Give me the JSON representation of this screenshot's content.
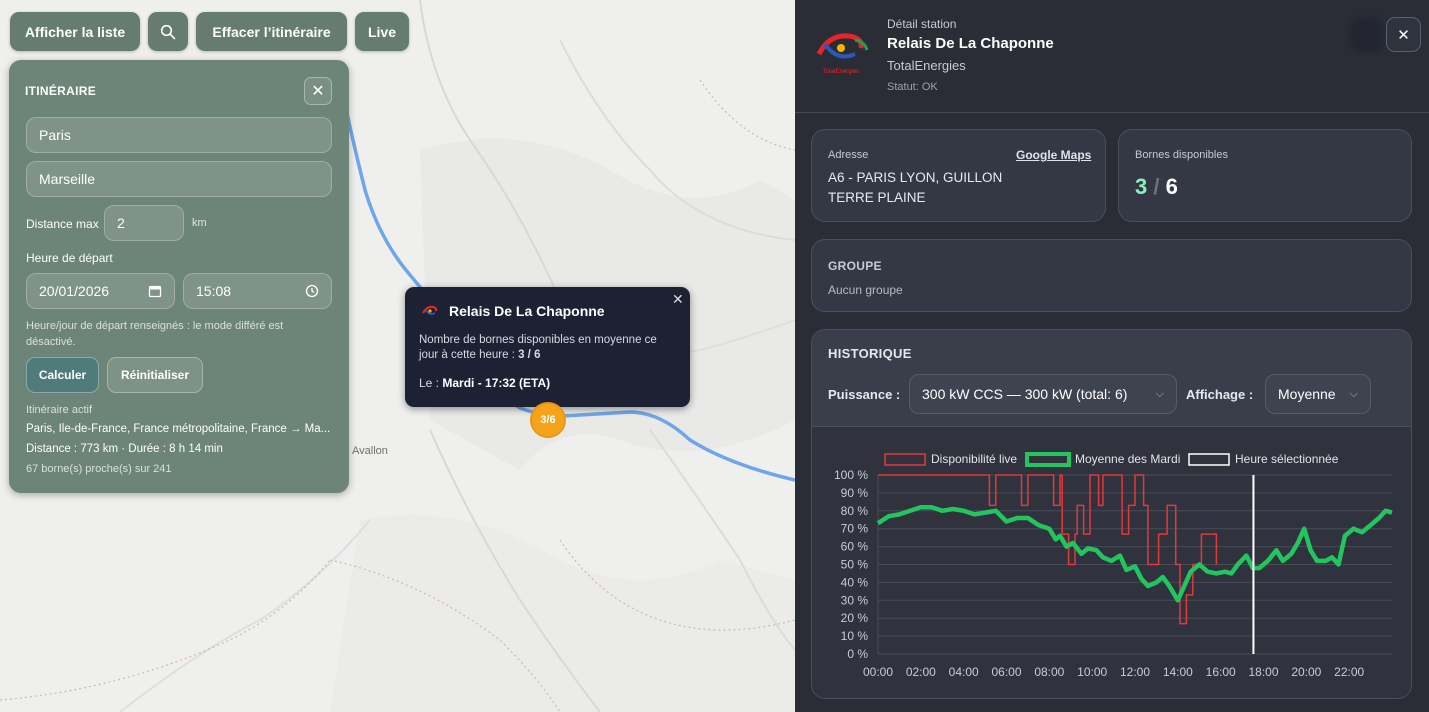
{
  "map": {
    "buttons": {
      "list": "Afficher la liste",
      "clear": "Effacer l’itinéraire",
      "live": "Live"
    },
    "town_label": "Avallon",
    "itinerary": {
      "title": "ITINÉRAIRE",
      "origin": "Paris",
      "destination": "Marseille",
      "distance_label": "Distance max",
      "distance_value": "2",
      "distance_unit": "km",
      "departure_label": "Heure de départ",
      "date": "20/01/2026",
      "time": "15:08",
      "hint": "Heure/jour de départ renseignés : le mode différé est désactivé.",
      "calc_button": "Calculer",
      "reset_button": "Réinitialiser",
      "active_label": "Itinéraire actif",
      "active_route": "Paris, Île-de-France, France métropolitaine, France → Ma...",
      "summary": "Distance : 773 km · Durée : 8 h 14 min",
      "nearby": "67 borne(s) proche(s) sur 241"
    },
    "popup": {
      "title": "Relais De La Chaponne",
      "text_prefix": "Nombre de bornes disponibles en moyenne ce jour à cette heure : ",
      "text_value": "3 / 6",
      "eta_prefix": "Le : ",
      "eta_value": "Mardi - 17:32 (ETA)"
    },
    "marker_label": "3/6"
  },
  "station": {
    "subtitle": "Détail station",
    "name": "Relais De La Chaponne",
    "brand": "TotalEnergies",
    "status": "Statut: OK",
    "logo_text": "TotalEnergies",
    "address_label": "Adresse",
    "address_line1": "A6 - PARIS LYON, GUILLON",
    "address_line2": "TERRE PLAINE",
    "maps_link": "Google Maps",
    "bornes_label": "Bornes disponibles",
    "bornes_available": "3",
    "bornes_sep": "/",
    "bornes_total": "6",
    "group_title": "GROUPE",
    "group_value": "Aucun groupe",
    "history_title": "HISTORIQUE",
    "power_label": "Puissance :",
    "power_value": "300 kW CCS — 300 kW (total: 6)",
    "display_label": "Affichage :",
    "display_value": "Moyenne"
  },
  "colors": {
    "live": "#e03a3a",
    "average": "#22c55e",
    "selected": "#ffffff",
    "marker": "#f4a31a"
  },
  "chart_data": {
    "type": "line",
    "legend": [
      "Disponibilité live",
      "Moyenne des Mardi",
      "Heure sélectionnée"
    ],
    "ylim": [
      0,
      100
    ],
    "y_ticks": [
      "0 %",
      "10 %",
      "20 %",
      "30 %",
      "40 %",
      "50 %",
      "60 %",
      "70 %",
      "80 %",
      "90 %",
      "100 %"
    ],
    "x_range": [
      0,
      24
    ],
    "x_ticks": [
      "00:00",
      "02:00",
      "04:00",
      "06:00",
      "08:00",
      "10:00",
      "12:00",
      "14:00",
      "16:00",
      "18:00",
      "20:00",
      "22:00"
    ],
    "selected_hour": 17.53,
    "series": [
      {
        "name": "Disponibilité live",
        "points": [
          [
            0,
            100
          ],
          [
            5.2,
            100
          ],
          [
            5.2,
            83
          ],
          [
            5.5,
            83
          ],
          [
            5.5,
            100
          ],
          [
            6.7,
            100
          ],
          [
            6.7,
            83
          ],
          [
            7.0,
            83
          ],
          [
            7.0,
            100
          ],
          [
            8.2,
            100
          ],
          [
            8.2,
            83
          ],
          [
            8.5,
            83
          ],
          [
            8.5,
            100
          ],
          [
            8.6,
            100
          ],
          [
            8.6,
            67
          ],
          [
            8.9,
            67
          ],
          [
            8.9,
            50
          ],
          [
            9.2,
            50
          ],
          [
            9.2,
            67
          ],
          [
            9.3,
            67
          ],
          [
            9.3,
            83
          ],
          [
            9.6,
            83
          ],
          [
            9.6,
            67
          ],
          [
            9.9,
            67
          ],
          [
            9.9,
            100
          ],
          [
            10.3,
            100
          ],
          [
            10.3,
            83
          ],
          [
            10.5,
            83
          ],
          [
            10.5,
            100
          ],
          [
            11.4,
            100
          ],
          [
            11.4,
            67
          ],
          [
            11.7,
            67
          ],
          [
            11.7,
            83
          ],
          [
            12.0,
            83
          ],
          [
            12.0,
            100
          ],
          [
            12.4,
            100
          ],
          [
            12.4,
            83
          ],
          [
            12.6,
            83
          ],
          [
            12.6,
            50
          ],
          [
            13.1,
            50
          ],
          [
            13.1,
            67
          ],
          [
            13.5,
            67
          ],
          [
            13.5,
            83
          ],
          [
            13.9,
            83
          ],
          [
            13.9,
            50
          ],
          [
            14.1,
            50
          ],
          [
            14.1,
            17
          ],
          [
            14.4,
            17
          ],
          [
            14.4,
            33
          ],
          [
            14.7,
            33
          ],
          [
            14.7,
            50
          ],
          [
            15.1,
            50
          ],
          [
            15.1,
            67
          ],
          [
            15.8,
            67
          ],
          [
            15.8,
            50
          ]
        ]
      },
      {
        "name": "Moyenne des Mardi",
        "points": [
          [
            0,
            73
          ],
          [
            0.5,
            77
          ],
          [
            1,
            78
          ],
          [
            1.5,
            80
          ],
          [
            2,
            82
          ],
          [
            2.5,
            82
          ],
          [
            3,
            80
          ],
          [
            3.5,
            81
          ],
          [
            4,
            80
          ],
          [
            4.5,
            78
          ],
          [
            5,
            79
          ],
          [
            5.5,
            80
          ],
          [
            6,
            74
          ],
          [
            6.5,
            76
          ],
          [
            7,
            76
          ],
          [
            7.5,
            72
          ],
          [
            8,
            70
          ],
          [
            8.3,
            64
          ],
          [
            8.5,
            66
          ],
          [
            8.8,
            60
          ],
          [
            9.1,
            62
          ],
          [
            9.5,
            56
          ],
          [
            9.8,
            59
          ],
          [
            10.2,
            58
          ],
          [
            10.5,
            54
          ],
          [
            10.9,
            52
          ],
          [
            11.3,
            55
          ],
          [
            11.6,
            47
          ],
          [
            12,
            49
          ],
          [
            12.3,
            42
          ],
          [
            12.6,
            38
          ],
          [
            13,
            40
          ],
          [
            13.3,
            43
          ],
          [
            13.6,
            38
          ],
          [
            14,
            30
          ],
          [
            14.3,
            38
          ],
          [
            14.6,
            46
          ],
          [
            15,
            50
          ],
          [
            15.4,
            46
          ],
          [
            15.8,
            45
          ],
          [
            16.2,
            46
          ],
          [
            16.5,
            45
          ],
          [
            16.8,
            50
          ],
          [
            17.2,
            55
          ],
          [
            17.5,
            48
          ],
          [
            17.8,
            48
          ],
          [
            18.2,
            52
          ],
          [
            18.6,
            58
          ],
          [
            18.9,
            52
          ],
          [
            19.3,
            56
          ],
          [
            19.6,
            62
          ],
          [
            19.9,
            70
          ],
          [
            20.2,
            58
          ],
          [
            20.5,
            52
          ],
          [
            20.9,
            52
          ],
          [
            21.2,
            54
          ],
          [
            21.5,
            50
          ],
          [
            21.8,
            66
          ],
          [
            22.2,
            70
          ],
          [
            22.6,
            68
          ],
          [
            23,
            72
          ],
          [
            23.4,
            76
          ],
          [
            23.7,
            80
          ],
          [
            24,
            79
          ]
        ]
      }
    ]
  }
}
